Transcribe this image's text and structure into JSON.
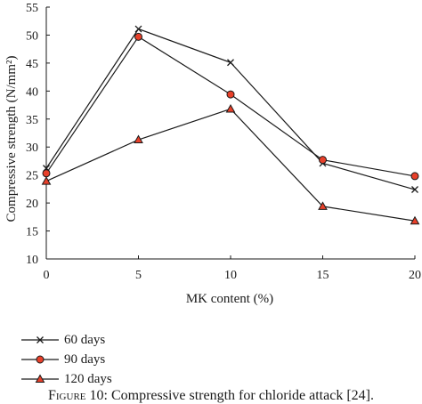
{
  "chart_data": {
    "type": "line",
    "xlabel": "MK content (%)",
    "ylabel": "Compressive strength (N/mm²)",
    "x": [
      0,
      5,
      10,
      15,
      20
    ],
    "xlim": [
      0,
      20
    ],
    "ylim": [
      10,
      55
    ],
    "xticks": [
      "0",
      "5",
      "10",
      "15",
      "20"
    ],
    "yticks": [
      "10",
      "15",
      "20",
      "25",
      "30",
      "35",
      "40",
      "45",
      "50",
      "55"
    ],
    "grid": false,
    "legend_position": "bottom-left",
    "series": [
      {
        "name": "60 days",
        "marker": "x",
        "values": [
          26.2,
          51.1,
          45.1,
          27.1,
          22.4
        ]
      },
      {
        "name": "90 days",
        "marker": "circle",
        "values": [
          25.3,
          49.7,
          39.4,
          27.7,
          24.8
        ]
      },
      {
        "name": "120 days",
        "marker": "triangle",
        "values": [
          23.9,
          31.3,
          36.8,
          19.4,
          16.8
        ]
      }
    ]
  },
  "caption": {
    "figure_label": "Figure 10:",
    "text": "Compressive strength for chloride attack [24]."
  },
  "colors": {
    "line": "#1a1a1a",
    "marker_fill": "#e8402a"
  }
}
